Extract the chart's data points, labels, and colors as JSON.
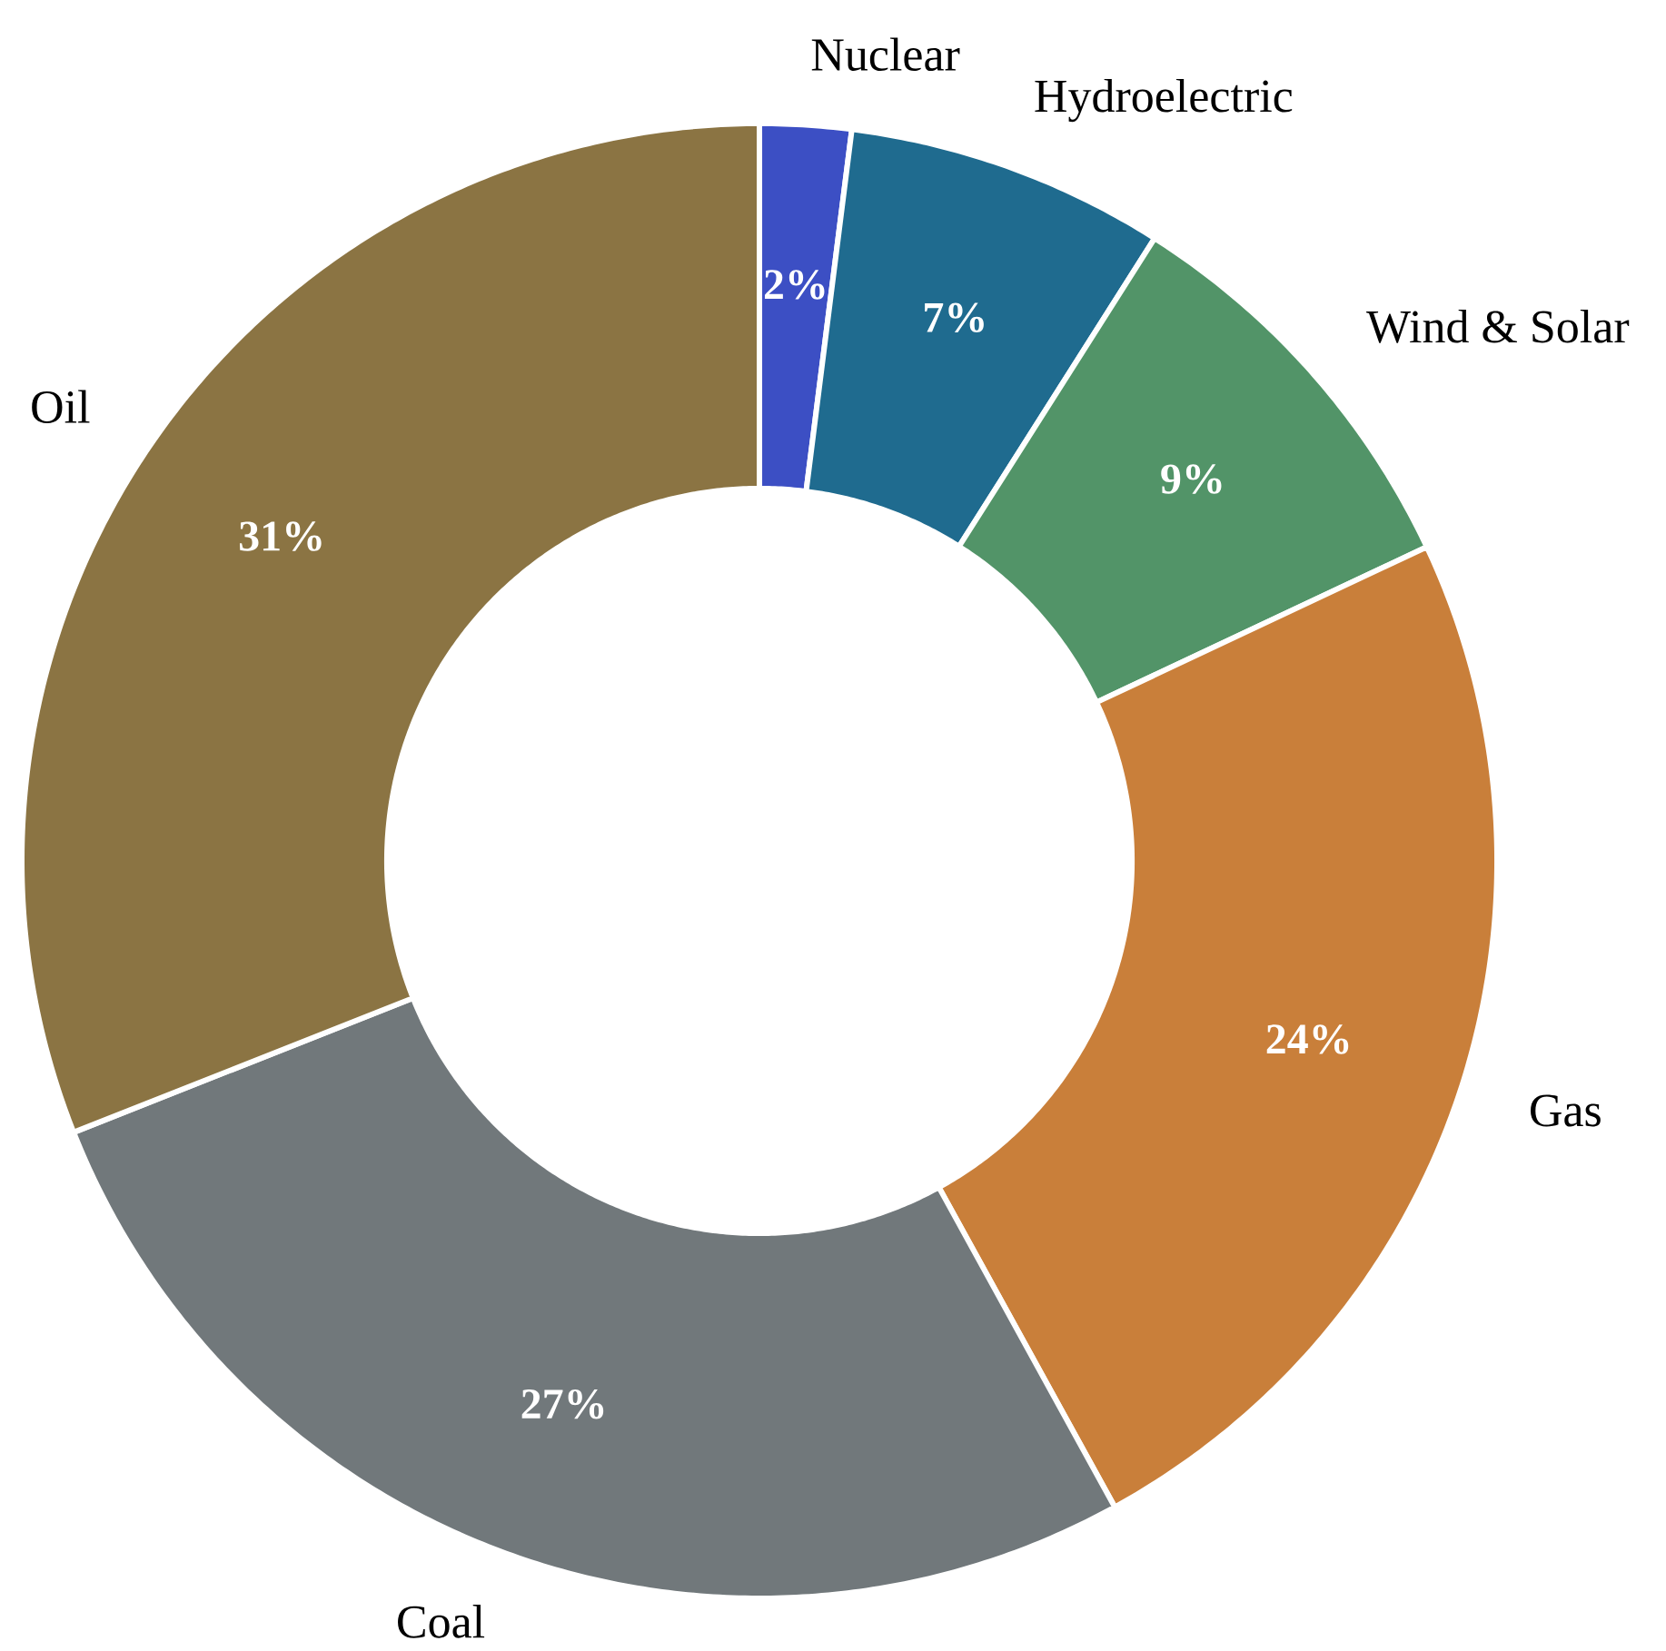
{
  "chart_data": {
    "type": "donut",
    "categories": [
      "Nuclear",
      "Hydroelectric",
      "Wind & Solar",
      "Gas",
      "Coal",
      "Oil"
    ],
    "values": [
      2,
      7,
      9,
      24,
      27,
      31
    ],
    "colors": [
      "#3c4fc4",
      "#1f6b8f",
      "#529468",
      "#c97f3a",
      "#71787b",
      "#8b7443"
    ],
    "value_labels": [
      "2%",
      "7%",
      "9%",
      "24%",
      "27%",
      "31%"
    ]
  }
}
